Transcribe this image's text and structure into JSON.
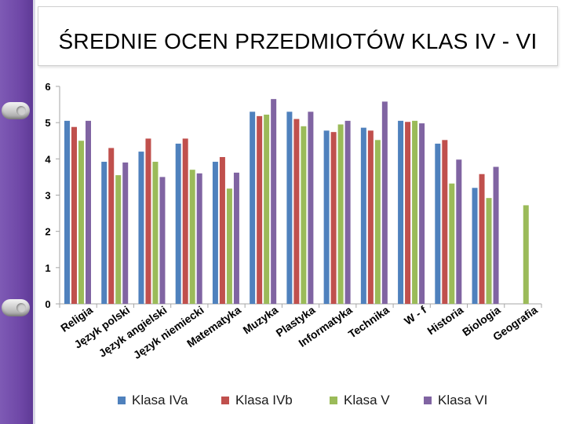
{
  "colors": {
    "binder": "#6f48a7",
    "series": [
      "#4f81bd",
      "#c0504d",
      "#9bbb59",
      "#8064a2"
    ]
  },
  "chart_data": {
    "type": "bar",
    "title": "ŚREDNIE OCEN PRZEDMIOTÓW KLAS IV - VI",
    "xlabel": "",
    "ylabel": "",
    "ylim": [
      0,
      6
    ],
    "yticks": [
      "0",
      "1",
      "2",
      "3",
      "4",
      "5",
      "6"
    ],
    "grid": false,
    "legend_position": "bottom",
    "categories": [
      "Religia",
      "Język polski",
      "Język angielski",
      "Język niemiecki",
      "Matematyka",
      "Muzyka",
      "Plastyka",
      "Informatyka",
      "Technika",
      "W - f",
      "Historia",
      "Biologia",
      "Geografia"
    ],
    "series": [
      {
        "name": "Klasa IVa",
        "values": [
          5.05,
          3.92,
          4.2,
          4.42,
          3.92,
          5.3,
          5.3,
          4.78,
          4.86,
          5.05,
          4.42,
          3.2,
          null
        ]
      },
      {
        "name": "Klasa IVb",
        "values": [
          4.88,
          4.3,
          4.56,
          4.56,
          4.05,
          5.18,
          5.1,
          4.74,
          4.78,
          5.02,
          4.52,
          3.58,
          null
        ]
      },
      {
        "name": "Klasa V",
        "values": [
          4.5,
          3.55,
          3.92,
          3.7,
          3.18,
          5.22,
          4.9,
          4.95,
          4.52,
          5.05,
          3.32,
          2.92,
          2.72
        ]
      },
      {
        "name": "Klasa VI",
        "values": [
          5.05,
          3.9,
          3.5,
          3.6,
          3.62,
          5.65,
          5.3,
          5.05,
          5.58,
          4.98,
          3.98,
          3.78,
          null
        ]
      }
    ]
  }
}
